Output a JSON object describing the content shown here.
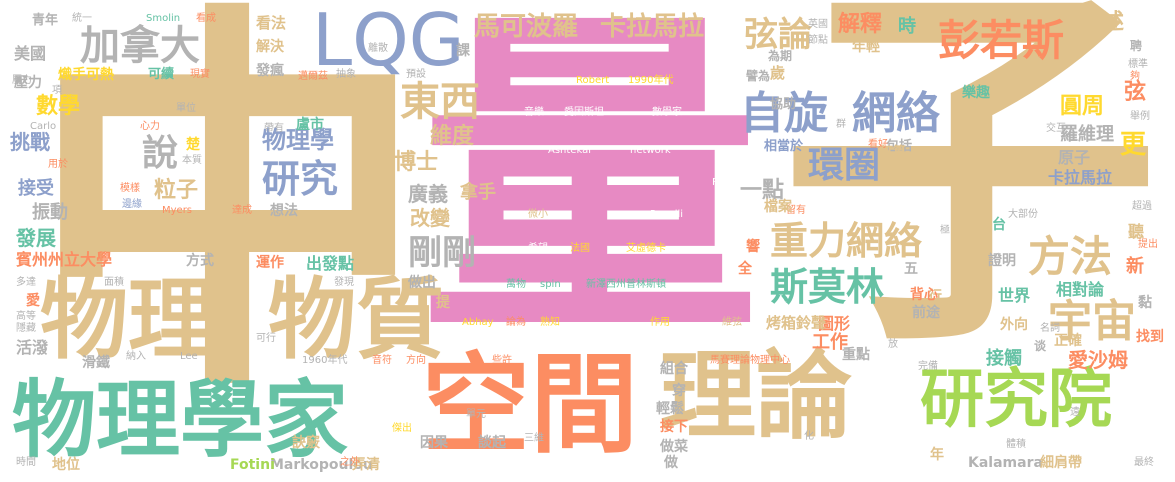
{
  "palette": {
    "tan": "#e0c28c",
    "pink": "#e78ac3",
    "green": "#66c2a5",
    "orange": "#fc8d62",
    "blue": "#8da0cb",
    "lime": "#a6d854",
    "yellow": "#ffd92f",
    "gray": "#b3b3b3"
  },
  "words": [
    "中",
    "量",
    "子",
    "物理學家",
    "空間",
    "理論",
    "研究院",
    "物理",
    "物質",
    "LQG",
    "自旋",
    "網絡",
    "彭若斯",
    "弦論",
    "重力網絡",
    "斯莫林",
    "宇宙",
    "方法",
    "剛剛",
    "東西",
    "加拿大",
    "研究",
    "說",
    "環圈",
    "馬可波羅",
    "卡拉馬拉",
    "解釋",
    "描述",
    "數學",
    "挑戰",
    "物理學",
    "粒子",
    "博士",
    "維度",
    "廣義",
    "拿手",
    "改變",
    "一點",
    "圓周",
    "羅維理",
    "原子",
    "卡拉馬拉",
    "職位",
    "世界",
    "相對論",
    "愛沙姆",
    "工作",
    "重點",
    "接觸",
    "更",
    "弦",
    "發展",
    "賓州州立大學",
    "接受",
    "振動",
    "Markopoulou",
    "Fotini",
    "Kalamara",
    "細肩帶",
    "年輕",
    "時",
    "青年",
    "美國",
    "熾手可熱",
    "可續",
    "壓力",
    "看法",
    "解決",
    "發瘋",
    "課",
    "歲",
    "協助",
    "包括",
    "打算",
    "相當於",
    "樂趣",
    "新",
    "聽",
    "谈",
    "黏",
    "Robert",
    "1990年代",
    "音樂",
    "愛因斯坦",
    "數學家",
    "Ashtekar",
    "network",
    "Penrose",
    "Roger",
    "微小",
    "Rovelli",
    "希望",
    "法國",
    "艾虛德卡",
    "萬物",
    "spin",
    "新澤西州普林斯頓",
    "Abhay",
    "論為",
    "熟知",
    "作用",
    "維弦",
    "馬賽理論物理中心",
    "1960年代",
    "音符",
    "方向",
    "些許",
    "因果",
    "談起",
    "三維",
    "輕鬆",
    "做菜",
    "接下",
    "地位",
    "訣竅",
    "弄清",
    "時間",
    "Smolin",
    "Carlo",
    "Lee",
    "Myers",
    "邊緣",
    "模樣",
    "單位",
    "心力",
    "本質",
    "用於",
    "楚",
    "想法",
    "達成",
    "帶有",
    "盧市",
    "出發點",
    "運作",
    "發現",
    "面積",
    "多達",
    "高等",
    "隱藏",
    "滑鐵",
    "納入",
    "可行",
    "傑出",
    "單元",
    "化",
    "台",
    "證明",
    "前途",
    "外向",
    "正確",
    "體積",
    "完備",
    "名詞",
    "找到",
    "最終",
    "遠",
    "提出",
    "超過",
    "大部份",
    "留有",
    "極",
    "響",
    "全",
    "五",
    "行",
    "背心",
    "圖形",
    "烤箱鈴聲",
    "檔案",
    "放",
    "看好",
    "群",
    "交互",
    "聘",
    "標準",
    "夠",
    "舉例",
    "英國",
    "節點",
    "為期",
    "譬為",
    "預設",
    "抽象",
    "邁爾茲",
    "現實",
    "看成",
    "統一",
    "離散",
    "項",
    "壓力",
    "活潑",
    "愛",
    "方式",
    "做出",
    "提",
    "之外",
    "穿",
    "組合",
    "年",
    "做"
  ]
}
